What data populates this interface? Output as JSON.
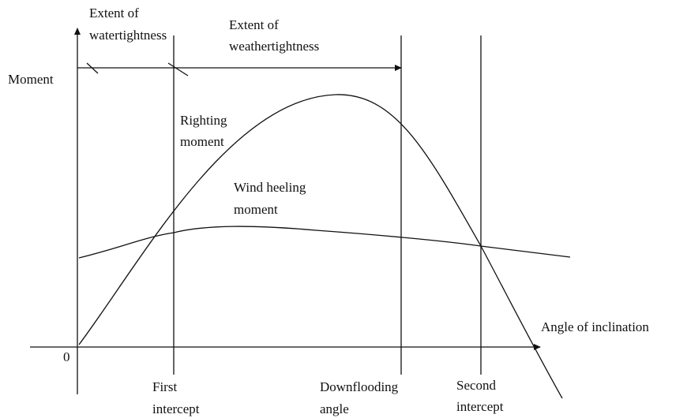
{
  "labels": {
    "watertightness": [
      "Extent of",
      "watertightness"
    ],
    "weathertightness": [
      "Extent of",
      "weathertightness"
    ],
    "y_axis": "Moment",
    "righting": [
      "Righting",
      "moment"
    ],
    "heeling": [
      "Wind heeling",
      "moment"
    ],
    "x_axis": "Angle of inclination",
    "origin": "0",
    "first_intercept": [
      "First",
      "intercept"
    ],
    "downflooding": [
      "Downflooding",
      "angle"
    ],
    "second_intercept": [
      "Second",
      "intercept"
    ]
  }
}
